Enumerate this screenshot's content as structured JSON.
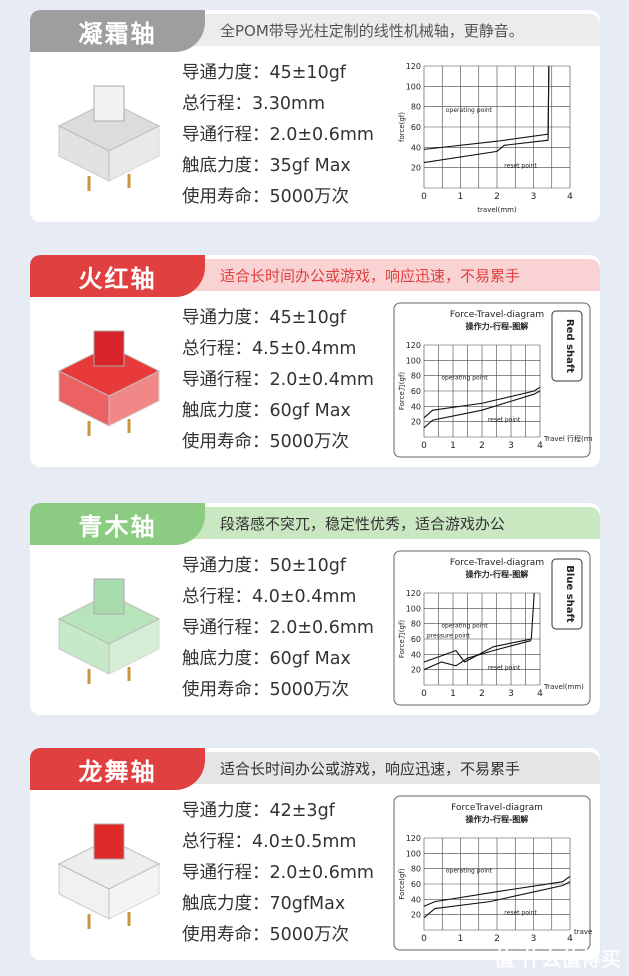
{
  "cards": [
    {
      "title": "凝霜轴",
      "subtitle": "全POM带导光柱定制的线性机械轴，更静音。",
      "tab_color": "#9e9e9e",
      "banner_bg": "#ececec",
      "banner_color": "#555",
      "switch_stem": "#f2f2f2",
      "switch_housing": "#dcdcdc",
      "specs": [
        "导通力度：45±10gf",
        "总行程：3.30mm",
        "导通行程：2.0±0.6mm",
        "触底力度：35gf Max",
        "使用寿命：5000万次"
      ],
      "chart": {
        "title": "",
        "subtitle": "",
        "ylabel": "force(gf)",
        "xlabel": "travel(mm)",
        "side_label": "",
        "operating": "operating point",
        "reset": "reset point",
        "x_ticks": [
          0,
          1,
          2,
          3,
          4
        ],
        "y_ticks": [
          20,
          40,
          60,
          80,
          100,
          120
        ],
        "xlim": [
          0,
          4
        ],
        "ylim": [
          0,
          120
        ],
        "series": [
          {
            "points": [
              [
                0,
                38
              ],
              [
                2,
                46
              ],
              [
                3.4,
                53
              ],
              [
                3.42,
                120
              ]
            ]
          },
          {
            "points": [
              [
                0,
                25
              ],
              [
                2,
                36
              ],
              [
                2.2,
                42
              ],
              [
                3.4,
                47
              ],
              [
                3.42,
                120
              ]
            ]
          }
        ]
      }
    },
    {
      "title": "火红轴",
      "subtitle": "适合长时间办公或游戏，响应迅速，不易累手",
      "tab_color": "#e0403f",
      "banner_bg": "#f9d3d3",
      "banner_color": "#e0403f",
      "switch_stem": "#d9232a",
      "switch_housing": "#e83a3a",
      "specs": [
        "导通力度：45±10gf",
        "总行程：4.5±0.4mm",
        "导通行程：2.0±0.4mm",
        "触底力度：60gf Max",
        "使用寿命：5000万次"
      ],
      "chart": {
        "title": "Force-Travel-diagram",
        "subtitle": "操作力-行程-图解",
        "ylabel": "Force力(gf)",
        "xlabel": "Travel 行程(mm)",
        "side_label": "Red shaft",
        "operating": "operating point",
        "reset": "reset point",
        "x_ticks": [
          0,
          1,
          2,
          3,
          4
        ],
        "y_ticks": [
          20,
          40,
          60,
          80,
          100,
          120
        ],
        "xlim": [
          0,
          4
        ],
        "ylim": [
          0,
          120
        ],
        "series": [
          {
            "points": [
              [
                0,
                25
              ],
              [
                0.3,
                35
              ],
              [
                2,
                44
              ],
              [
                3.8,
                60
              ],
              [
                4,
                65
              ]
            ]
          },
          {
            "points": [
              [
                0,
                12
              ],
              [
                0.3,
                22
              ],
              [
                2,
                35
              ],
              [
                3.8,
                56
              ],
              [
                4,
                60
              ]
            ]
          }
        ]
      }
    },
    {
      "title": "青木轴",
      "subtitle": "段落感不突兀，稳定性优秀，适合游戏办公",
      "tab_color": "#8ccc82",
      "banner_bg": "#c9e8c2",
      "banner_color": "#333",
      "switch_stem": "#a8dcae",
      "switch_housing": "#b8e4bc",
      "specs": [
        "导通力度：50±10gf",
        "总行程：4.0±0.4mm",
        "导通行程：2.0±0.6mm",
        "触底力度：60gf Max",
        "使用寿命：5000万次"
      ],
      "chart": {
        "title": "Force-Travel-diagram",
        "subtitle": "操作力-行程-图解",
        "ylabel": "Force力(gf)",
        "xlabel": "Travel(mm)",
        "side_label": "Blue shaft",
        "operating": "operating point",
        "reset": "reset point",
        "pressure": "pressure point",
        "x_ticks": [
          0,
          1,
          2,
          3,
          4
        ],
        "y_ticks": [
          20,
          40,
          60,
          80,
          100,
          120
        ],
        "xlim": [
          0,
          4
        ],
        "ylim": [
          0,
          120
        ],
        "series": [
          {
            "points": [
              [
                0,
                30
              ],
              [
                0.6,
                38
              ],
              [
                1.1,
                45
              ],
              [
                1.4,
                30
              ],
              [
                2.4,
                50
              ],
              [
                3.7,
                60
              ],
              [
                3.8,
                120
              ]
            ]
          },
          {
            "points": [
              [
                0,
                20
              ],
              [
                0.6,
                30
              ],
              [
                1.1,
                25
              ],
              [
                1.5,
                35
              ],
              [
                2.4,
                45
              ],
              [
                3.7,
                58
              ]
            ]
          }
        ]
      }
    },
    {
      "title": "龙舞轴",
      "subtitle": "适合长时间办公或游戏，响应迅速，不易累手",
      "tab_color": "#e0403f",
      "banner_bg": "#e5e5e5",
      "banner_color": "#333",
      "switch_stem": "#e02a2a",
      "switch_housing": "#eeeeee",
      "specs": [
        "导通力度：42±3gf",
        "总行程：4.0±0.5mm",
        "导通行程：2.0±0.6mm",
        "触底力度：70gfMax",
        "使用寿命：5000万次"
      ],
      "chart": {
        "title": "ForceTravel-diagram",
        "subtitle": "操作力-行程-图解",
        "ylabel": "Force(gf)",
        "xlabel": "travel(mm)",
        "side_label": "",
        "operating": "operating point",
        "reset": "reset point",
        "x_ticks": [
          0,
          1,
          2,
          3,
          4
        ],
        "y_ticks": [
          20,
          40,
          60,
          80,
          100,
          120
        ],
        "xlim": [
          0,
          4
        ],
        "ylim": [
          0,
          120
        ],
        "series": [
          {
            "points": [
              [
                0,
                31
              ],
              [
                0.3,
                37
              ],
              [
                2,
                50
              ],
              [
                3.8,
                63
              ],
              [
                4,
                70
              ]
            ]
          },
          {
            "points": [
              [
                0,
                16
              ],
              [
                0.3,
                28
              ],
              [
                1.8,
                37
              ],
              [
                3.8,
                58
              ],
              [
                4,
                63
              ]
            ]
          }
        ]
      }
    }
  ],
  "watermark": "值 什么值得买"
}
